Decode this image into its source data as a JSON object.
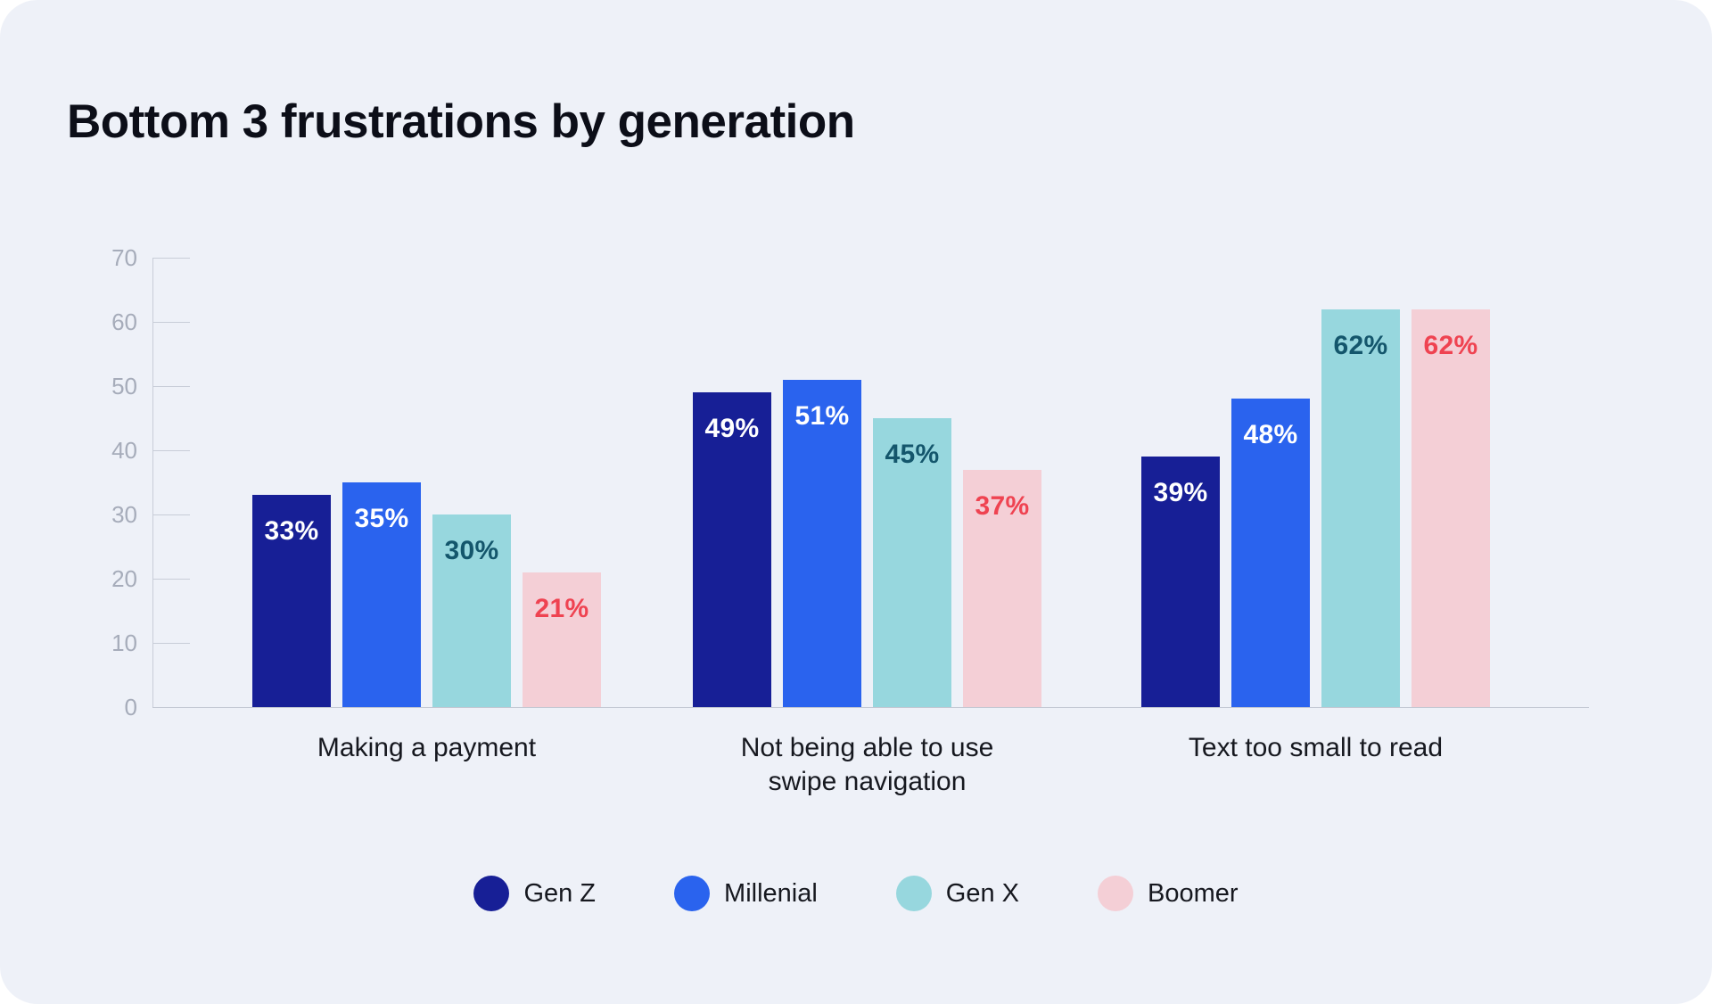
{
  "title": "Bottom 3 frustrations by generation",
  "chart_data": {
    "type": "bar",
    "title": "Bottom 3 frustrations by generation",
    "categories": [
      "Making a payment",
      "Not being able to use swipe navigation",
      "Text too small to read"
    ],
    "series": [
      {
        "name": "Gen Z",
        "color": "#171F96",
        "label_color": "#FFFFFF",
        "values": [
          33,
          49,
          39
        ]
      },
      {
        "name": "Millenial",
        "color": "#2A63EE",
        "label_color": "#FFFFFF",
        "values": [
          35,
          51,
          48
        ]
      },
      {
        "name": "Gen X",
        "color": "#97D7DE",
        "label_color": "#14566C",
        "values": [
          30,
          45,
          62
        ]
      },
      {
        "name": "Boomer",
        "color": "#F4CFD6",
        "label_color": "#EF4351",
        "values": [
          21,
          37,
          62
        ]
      }
    ],
    "value_suffix": "%",
    "ylim": [
      0,
      70
    ],
    "yticks": [
      0,
      10,
      20,
      30,
      40,
      50,
      60,
      70
    ],
    "grid": "short tick marks on y-axis only",
    "legend_position": "bottom",
    "legend_labels": [
      "Gen Z",
      "Millenial",
      "Gen X",
      "Boomer"
    ]
  },
  "colors": {
    "card_background": "#EEF1F8",
    "page_background": "#FFFFFF",
    "title_text": "#0C0E18",
    "category_text": "#16181F",
    "axis_label_text": "#A6ACBA",
    "axis_line": "#C8CDD8"
  }
}
